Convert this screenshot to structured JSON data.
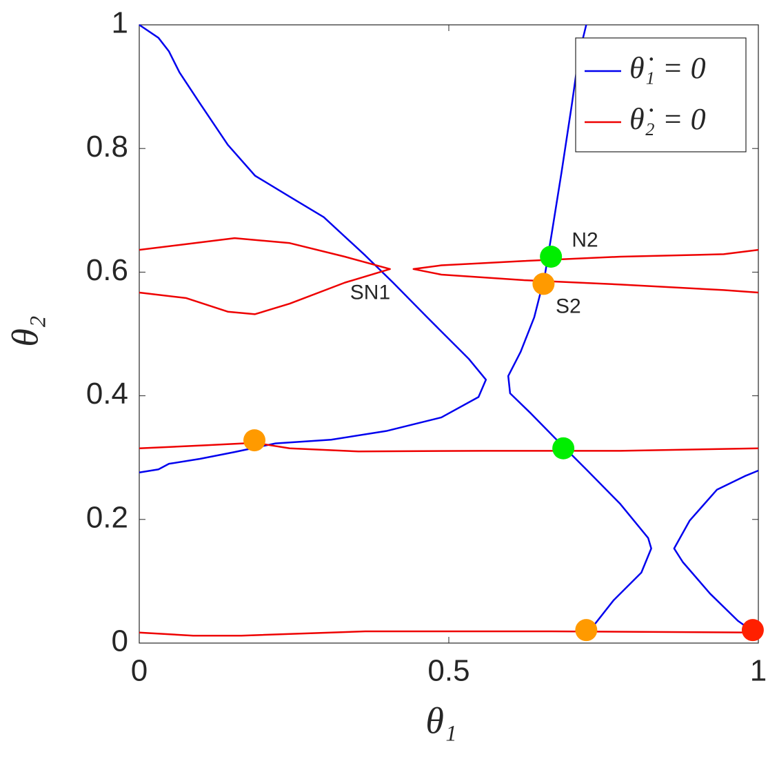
{
  "chart_data": {
    "type": "line",
    "xlabel": "θ₁",
    "ylabel": "θ₂",
    "xlim": [
      0,
      1
    ],
    "ylim": [
      0,
      1
    ],
    "xticks": [
      0,
      0.5,
      1
    ],
    "yticks": [
      0,
      0.2,
      0.4,
      0.6,
      0.8,
      1
    ],
    "grid": false,
    "legend": "upper right",
    "series": [
      {
        "name": "θ̇₁ = 0",
        "color": "#0000ee",
        "x": [
          0,
          0.031,
          0.048,
          0.065,
          0.098,
          0.143,
          0.187,
          0.243,
          0.298,
          0.365,
          0.41,
          0.465,
          0.532,
          0.56,
          0.548,
          0.488,
          0.399,
          0.31,
          0.22,
          0.154,
          0.098,
          0.048,
          0.031,
          0,
          null,
          0.722,
          0.71,
          0.699,
          0.682,
          0.666,
          0.655,
          0.638,
          0.616,
          0.596,
          0.599,
          0.633,
          0.677,
          0.722,
          0.777,
          0.822,
          0.827,
          0.811,
          0.766,
          0.733,
          0.724,
          null,
          1,
          0.978,
          0.933,
          0.889,
          0.864,
          0.878,
          0.922,
          0.967,
          0.991
        ],
        "values": [
          1,
          0.979,
          0.957,
          0.923,
          0.873,
          0.806,
          0.756,
          0.722,
          0.689,
          0.627,
          0.583,
          0.527,
          0.46,
          0.426,
          0.398,
          0.365,
          0.343,
          0.329,
          0.323,
          0.309,
          0.298,
          0.29,
          0.281,
          0.276,
          null,
          1,
          0.951,
          0.873,
          0.761,
          0.661,
          0.594,
          0.527,
          0.471,
          0.432,
          0.404,
          0.371,
          0.326,
          0.281,
          0.225,
          0.17,
          0.153,
          0.114,
          0.069,
          0.027,
          0.019,
          null,
          0.279,
          0.27,
          0.248,
          0.198,
          0.153,
          0.131,
          0.08,
          0.036,
          0.019
        ]
      },
      {
        "name": "θ̇₂ = 0",
        "color": "#ee0000",
        "x": [
          0,
          0.065,
          0.154,
          0.243,
          0.332,
          0.405,
          0.332,
          0.243,
          0.187,
          0.143,
          0.076,
          0,
          null,
          1,
          0.944,
          0.777,
          0.621,
          0.488,
          0.443,
          0.488,
          0.621,
          0.777,
          0.944,
          1,
          null,
          0,
          0.109,
          0.187,
          0.243,
          0.354,
          0.555,
          0.777,
          1,
          null,
          0,
          0.087,
          0.165,
          0.365,
          0.666,
          1
        ],
        "values": [
          0.636,
          0.644,
          0.655,
          0.647,
          0.625,
          0.605,
          0.583,
          0.549,
          0.532,
          0.536,
          0.558,
          0.567,
          null,
          0.636,
          0.629,
          0.625,
          0.618,
          0.611,
          0.605,
          0.596,
          0.587,
          0.58,
          0.571,
          0.567,
          null,
          0.315,
          0.32,
          0.324,
          0.315,
          0.31,
          0.311,
          0.311,
          0.315,
          null,
          0.017,
          0.012,
          0.012,
          0.019,
          0.019,
          0.017
        ]
      }
    ],
    "markers": {
      "x": [
        0.186,
        0.665,
        0.653,
        0.685,
        0.722,
        0.991
      ],
      "values": [
        0.328,
        0.625,
        0.581,
        0.315,
        0.021,
        0.021
      ],
      "colors": [
        "#ff9a00",
        "#00ee00",
        "#ff9a00",
        "#00ee00",
        "#ff9a00",
        "#ff2000"
      ]
    },
    "annotations": [
      {
        "text": "SN1",
        "x": 0.373,
        "y": 0.565
      },
      {
        "text": "N2",
        "x": 0.72,
        "y": 0.65
      },
      {
        "text": "S2",
        "x": 0.693,
        "y": 0.543
      }
    ]
  }
}
